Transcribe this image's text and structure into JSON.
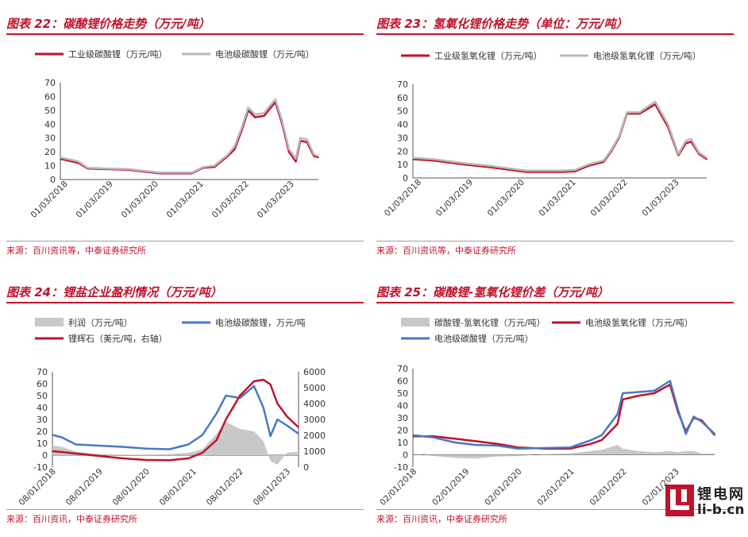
{
  "chart_data": [
    {
      "type": "line",
      "title": "图表 22：碳酸锂价格走势（万元/吨）",
      "source": "来源：百川资讯等，中泰证券研究所",
      "ylim": [
        0,
        70
      ],
      "yticks": [
        0,
        10,
        20,
        30,
        40,
        50,
        60,
        70
      ],
      "xlim": [
        2018.0,
        2023.7
      ],
      "xtick_values": [
        2018.17,
        2019.17,
        2020.17,
        2021.17,
        2022.17,
        2023.17
      ],
      "xtick_labels": [
        "01/03/2018",
        "01/03/2019",
        "01/03/2020",
        "01/03/2021",
        "01/03/2022",
        "01/03/2023"
      ],
      "legend": "top",
      "series": [
        {
          "name": "工业级碳酸锂（万元/吨）",
          "color": "#c0122b",
          "x": [
            2018.0,
            2018.4,
            2018.6,
            2019.0,
            2019.5,
            2019.9,
            2020.2,
            2020.5,
            2020.9,
            2021.0,
            2021.15,
            2021.4,
            2021.7,
            2021.85,
            2022.0,
            2022.15,
            2022.3,
            2022.5,
            2022.75,
            2022.9,
            2023.05,
            2023.2,
            2023.3,
            2023.45,
            2023.6,
            2023.7
          ],
          "y": [
            15,
            12,
            8,
            7.5,
            7,
            5.5,
            4.5,
            4.5,
            4.5,
            6,
            8.5,
            9,
            17,
            22,
            35,
            50,
            45,
            46,
            56,
            40,
            20,
            13,
            28,
            27,
            17,
            16
          ]
        },
        {
          "name": "电池级碳酸锂（万元/吨）",
          "color": "#b8b8b8",
          "x": [
            2018.0,
            2018.4,
            2018.6,
            2019.0,
            2019.5,
            2019.9,
            2020.2,
            2020.5,
            2020.9,
            2021.0,
            2021.15,
            2021.4,
            2021.7,
            2021.85,
            2022.0,
            2022.15,
            2022.3,
            2022.5,
            2022.75,
            2022.9,
            2023.05,
            2023.2,
            2023.3,
            2023.45,
            2023.6,
            2023.7
          ],
          "y": [
            16,
            13,
            8.5,
            8,
            7.5,
            6,
            5,
            5,
            5,
            6.5,
            9,
            10,
            18,
            24,
            37,
            52,
            47,
            48,
            58,
            42,
            22,
            15,
            30,
            29,
            18,
            17
          ]
        }
      ]
    },
    {
      "type": "line",
      "title": "图表 23：氢氧化锂价格走势（单位：万元/吨）",
      "source": "来源：百川资讯等，中泰证券研究所",
      "ylim": [
        0,
        70
      ],
      "yticks": [
        0,
        10,
        20,
        30,
        40,
        50,
        60,
        70
      ],
      "xlim": [
        2018.0,
        2023.7
      ],
      "xtick_values": [
        2018.17,
        2019.17,
        2020.17,
        2021.17,
        2022.17,
        2023.17
      ],
      "xtick_labels": [
        "01/03/2018",
        "01/03/2019",
        "01/03/2020",
        "01/03/2021",
        "01/03/2022",
        "01/03/2023"
      ],
      "legend": "top",
      "series": [
        {
          "name": "工业级氢氧化锂（万元/吨）",
          "color": "#c0122b",
          "x": [
            2018.0,
            2018.4,
            2018.6,
            2019.0,
            2019.5,
            2019.9,
            2020.2,
            2020.5,
            2020.9,
            2021.15,
            2021.4,
            2021.7,
            2021.85,
            2022.0,
            2022.15,
            2022.4,
            2022.7,
            2022.95,
            2023.15,
            2023.3,
            2023.4,
            2023.55,
            2023.7
          ],
          "y": [
            14,
            13,
            12,
            10,
            8,
            6,
            4.5,
            4.5,
            4.5,
            5,
            9,
            12,
            20,
            30,
            48,
            48,
            55,
            38,
            17,
            26,
            27,
            18,
            14
          ]
        },
        {
          "name": "电池级氢氧化锂（万元/吨）",
          "color": "#b8b8b8",
          "x": [
            2018.0,
            2018.4,
            2018.6,
            2019.0,
            2019.5,
            2019.9,
            2020.2,
            2020.5,
            2020.9,
            2021.15,
            2021.4,
            2021.7,
            2021.85,
            2022.0,
            2022.15,
            2022.4,
            2022.7,
            2022.95,
            2023.15,
            2023.3,
            2023.4,
            2023.55,
            2023.7
          ],
          "y": [
            15,
            14,
            13,
            11,
            9,
            7,
            5.5,
            5.5,
            5.5,
            6,
            10,
            13,
            21,
            31,
            49,
            49,
            57,
            40,
            18,
            28,
            29,
            19,
            15
          ]
        }
      ]
    },
    {
      "type": "line",
      "title": "图表 24：锂盐企业盈利情况（万元/吨）",
      "source": "来源：百川资讯，中泰证券研究所",
      "ylim": [
        -10,
        70
      ],
      "yticks": [
        -10,
        0,
        10,
        20,
        30,
        40,
        50,
        60,
        70
      ],
      "y2lim": [
        0,
        6000
      ],
      "y2ticks": [
        0,
        1000,
        2000,
        3000,
        4000,
        5000,
        6000
      ],
      "xlim": [
        2018.5,
        2023.75
      ],
      "xtick_values": [
        2018.58,
        2019.58,
        2020.58,
        2021.58,
        2022.58,
        2023.58
      ],
      "xtick_labels": [
        "08/01/2018",
        "08/01/2019",
        "08/01/2020",
        "08/01/2021",
        "08/01/2022",
        "08/01/2023"
      ],
      "legend": "top",
      "series": [
        {
          "name": "利润（万元/吨）",
          "color": "#c8c8c8",
          "kind": "area",
          "x": [
            2018.5,
            2018.7,
            2019.0,
            2019.5,
            2020.0,
            2020.5,
            2021.0,
            2021.4,
            2021.7,
            2022.0,
            2022.2,
            2022.5,
            2022.8,
            2023.0,
            2023.15,
            2023.3,
            2023.5,
            2023.75
          ],
          "y": [
            8,
            7,
            3,
            1,
            0.5,
            0.5,
            1,
            2,
            5,
            18,
            28,
            22,
            20,
            12,
            -5,
            -8,
            2,
            3
          ]
        },
        {
          "name": "电池级碳酸锂，万元/吨",
          "color": "#4a78c2",
          "axis": "left",
          "x": [
            2018.5,
            2018.7,
            2019.0,
            2019.5,
            2020.0,
            2020.5,
            2021.0,
            2021.4,
            2021.7,
            2022.0,
            2022.2,
            2022.5,
            2022.8,
            2023.0,
            2023.15,
            2023.3,
            2023.5,
            2023.75
          ],
          "y": [
            17,
            15,
            9,
            8,
            7,
            5.5,
            5,
            9,
            17,
            35,
            50,
            48,
            58,
            40,
            16,
            30,
            25,
            18
          ]
        },
        {
          "name": "锂辉石（美元/吨，右轴）",
          "color": "#c0122b",
          "axis": "right",
          "x": [
            2018.5,
            2018.7,
            2019.0,
            2019.5,
            2020.0,
            2020.5,
            2021.0,
            2021.4,
            2021.7,
            2022.0,
            2022.2,
            2022.5,
            2022.8,
            2023.0,
            2023.15,
            2023.3,
            2023.5,
            2023.75
          ],
          "y": [
            1000,
            950,
            850,
            700,
            550,
            450,
            430,
            550,
            900,
            1700,
            3000,
            4500,
            5400,
            5500,
            5200,
            4000,
            3200,
            2500
          ]
        }
      ]
    },
    {
      "type": "line",
      "title": "图表 25：碳酸锂-氢氧化锂价差（万元/吨）",
      "source": "来源：百川资讯，中泰证券研究所",
      "ylim": [
        -10,
        70
      ],
      "yticks": [
        -10,
        0,
        10,
        20,
        30,
        40,
        50,
        60,
        70
      ],
      "xlim": [
        2018.0,
        2023.75
      ],
      "xtick_values": [
        2018.08,
        2019.08,
        2020.08,
        2021.08,
        2022.08,
        2023.08
      ],
      "xtick_labels": [
        "02/01/2018",
        "02/01/2019",
        "02/01/2020",
        "02/01/2021",
        "02/01/2022",
        "02/01/2023"
      ],
      "legend": "top",
      "series": [
        {
          "name": "碳酸锂-氢氧化锂（万元/吨）",
          "color": "#c8c8c8",
          "kind": "area",
          "x": [
            2018.0,
            2018.4,
            2018.8,
            2019.2,
            2019.6,
            2020.0,
            2020.5,
            2021.0,
            2021.4,
            2021.6,
            2021.9,
            2022.0,
            2022.3,
            2022.6,
            2022.9,
            2023.05,
            2023.2,
            2023.35,
            2023.5,
            2023.75
          ],
          "y": [
            1,
            -1,
            -2.5,
            -3,
            -1.5,
            -1,
            0.5,
            1,
            3,
            4,
            8,
            5,
            3,
            2,
            3,
            2,
            3,
            3,
            1,
            1
          ]
        },
        {
          "name": "电池级氢氧化锂（万元/吨）",
          "color": "#c0122b",
          "x": [
            2018.0,
            2018.4,
            2018.8,
            2019.2,
            2019.6,
            2020.0,
            2020.5,
            2021.0,
            2021.4,
            2021.6,
            2021.9,
            2022.0,
            2022.3,
            2022.6,
            2022.9,
            2023.05,
            2023.2,
            2023.35,
            2023.5,
            2023.75
          ],
          "y": [
            15,
            15,
            13,
            11,
            9,
            6,
            5,
            5,
            9,
            12,
            25,
            45,
            48,
            50,
            57,
            35,
            19,
            30,
            28,
            16
          ]
        },
        {
          "name": "电池级碳酸锂（万元/吨）",
          "color": "#4a78c2",
          "x": [
            2018.0,
            2018.4,
            2018.8,
            2019.2,
            2019.6,
            2020.0,
            2020.5,
            2021.0,
            2021.4,
            2021.6,
            2021.9,
            2022.0,
            2022.3,
            2022.6,
            2022.9,
            2023.05,
            2023.2,
            2023.35,
            2023.5,
            2023.75
          ],
          "y": [
            16,
            14,
            10,
            8,
            7.5,
            5,
            5.5,
            6,
            12,
            16,
            33,
            50,
            51,
            52,
            60,
            37,
            17,
            31,
            27,
            17
          ]
        }
      ]
    }
  ],
  "logo": {
    "text_cn": "锂电网",
    "text_url": "li-b.cn"
  }
}
